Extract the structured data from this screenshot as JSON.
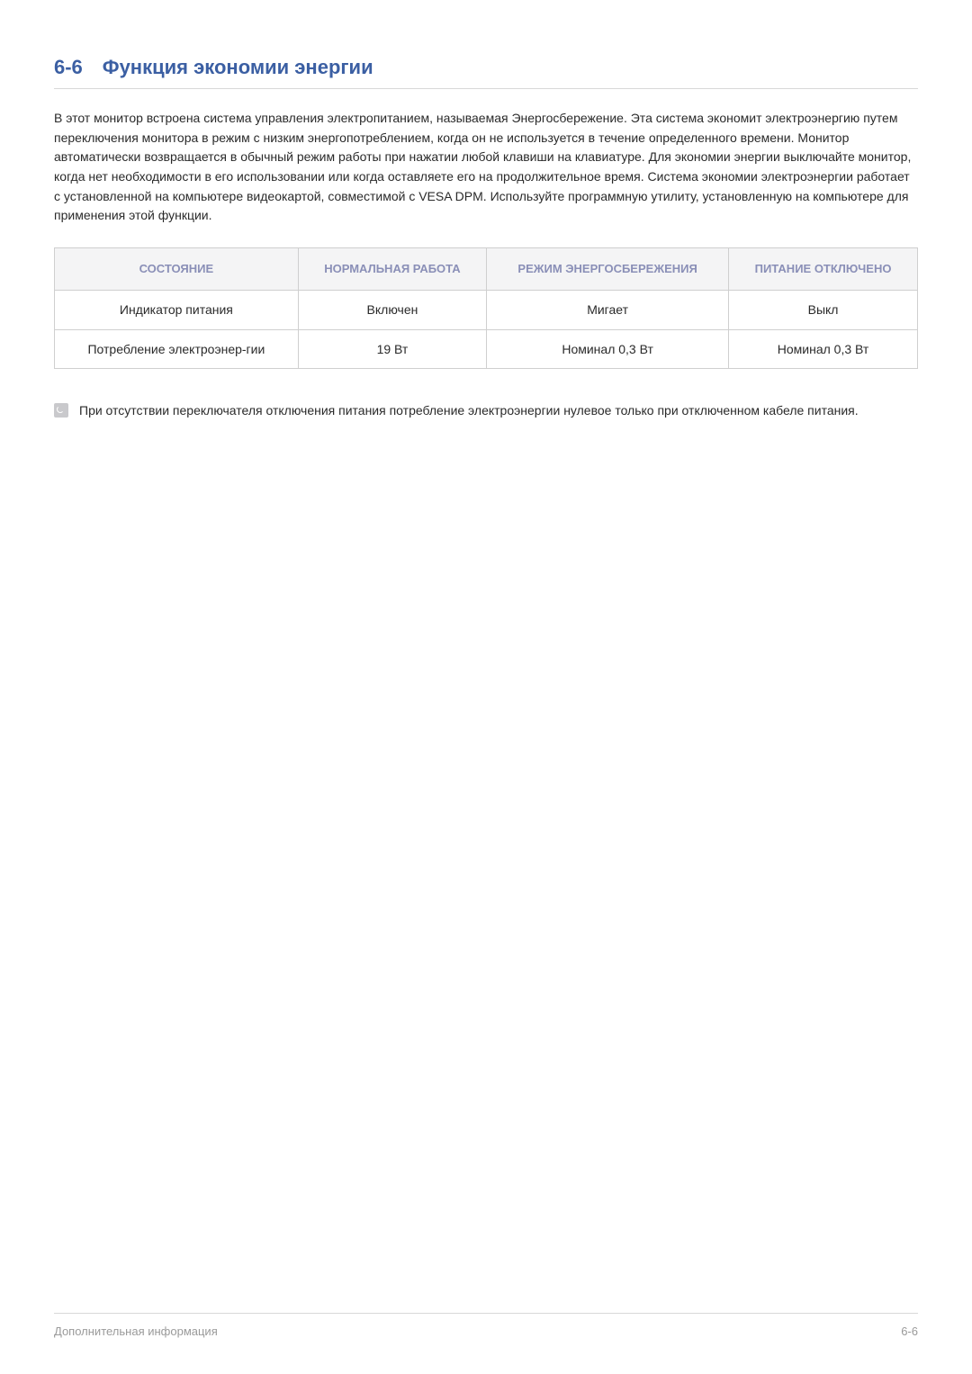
{
  "heading": {
    "number": "6-6",
    "title": "Функция экономии энергии"
  },
  "paragraph": "В этот монитор встроена система управления электропитанием, называемая Энергосбережение. Эта система экономит электроэнергию путем переключения монитора в режим с низким энергопотреблением, когда он не используется в течение определенного времени. Монитор автоматически возвращается в обычный режим работы при нажатии любой клавиши на клавиатуре. Для экономии энергии выключайте монитор, когда нет необходимости в его использовании или когда оставляете его на продолжительное время. Система экономии электроэнергии работает с установленной на компьютере видеокартой, совместимой с VESA DPM. Используйте программную утилиту, установленную на компьютере для применения этой функции.",
  "table": {
    "columns": [
      "СОСТОЯНИЕ",
      "НОРМАЛЬНАЯ РАБОТА",
      "РЕЖИМ ЭНЕРГОСБЕРЕЖЕНИЯ",
      "ПИТАНИЕ ОТКЛЮЧЕНО"
    ],
    "rows": [
      [
        "Индикатор питания",
        "Включен",
        "Мигает",
        "Выкл"
      ],
      [
        "Потребление электроэнер-гии",
        "19 Вт",
        "Номинал 0,3 Вт",
        "Номинал 0,3 Вт"
      ]
    ],
    "header_bg": "#f4f4f5",
    "header_color": "#8a8fb7",
    "border_color": "#cfcfcf",
    "cell_color": "#2a2a2a"
  },
  "note": "При отсутствии переключателя отключения питания потребление электроэнергии нулевое только при отключенном кабеле питания.",
  "footer": {
    "left": "Дополнительная информация",
    "right": "6-6"
  },
  "colors": {
    "heading": "#3b5fa3",
    "text": "#2a2a2a",
    "footer": "#9a9a9a",
    "rule": "#d8d8d8",
    "background": "#ffffff"
  },
  "typography": {
    "heading_fontsize": 22,
    "body_fontsize": 14,
    "table_header_fontsize": 13,
    "footer_fontsize": 13
  }
}
